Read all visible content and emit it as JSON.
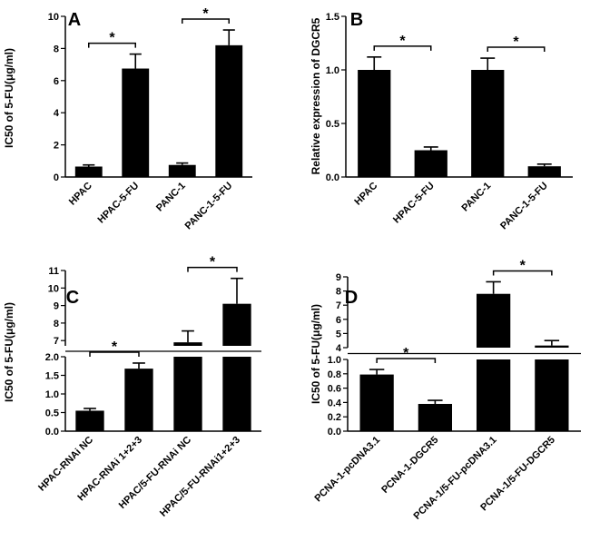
{
  "chart_data": [
    {
      "panel_label": "A",
      "type": "bar",
      "ylabel": "IC50 of 5-FU(μg/ml)",
      "categories": [
        "HPAC",
        "HPAC-5-FU",
        "PANC-1",
        "PANC-1-5-FU"
      ],
      "values": [
        0.65,
        6.75,
        0.75,
        8.2
      ],
      "errors": [
        0.1,
        0.9,
        0.12,
        0.95
      ],
      "ylim": [
        0,
        10
      ],
      "yticks": [
        0,
        2,
        4,
        6,
        8,
        10
      ],
      "significance": [
        {
          "from": 0,
          "to": 1,
          "label": "*"
        },
        {
          "from": 2,
          "to": 3,
          "label": "*"
        }
      ]
    },
    {
      "panel_label": "B",
      "type": "bar",
      "ylabel": "Relative expression of DGCR5",
      "categories": [
        "HPAC",
        "HPAC-5-FU",
        "PANC-1",
        "PANC-1-5-FU"
      ],
      "values": [
        1.0,
        0.25,
        1.0,
        0.1
      ],
      "errors": [
        0.12,
        0.03,
        0.11,
        0.02
      ],
      "ylim": [
        0,
        1.5
      ],
      "yticks": [
        "0.0",
        "0.5",
        "1.0",
        "1.5"
      ],
      "significance": [
        {
          "from": 0,
          "to": 1,
          "label": "*"
        },
        {
          "from": 2,
          "to": 3,
          "label": "*"
        }
      ]
    },
    {
      "panel_label": "C",
      "type": "bar",
      "broken_axis": true,
      "ylabel": "IC50 of 5-FU(μg/ml)",
      "categories": [
        "HPAC-RNAi NC",
        "HPAC-RNAi 1+2+3",
        "HPAC/5-FU-RNAi NC",
        "HPAC/5-FU-RNAi1+2+3"
      ],
      "values": [
        0.55,
        1.68,
        6.9,
        9.1
      ],
      "errors": [
        0.06,
        0.15,
        0.65,
        1.45
      ],
      "lower_range": [
        0,
        2
      ],
      "lower_ticks": [
        "0.0",
        "0.5",
        "1.0",
        "1.5",
        "2.0"
      ],
      "upper_range": [
        6.7,
        11
      ],
      "upper_ticks": [
        "7",
        "8",
        "9",
        "10",
        "11"
      ],
      "significance": [
        {
          "from": 0,
          "to": 1,
          "label": "*"
        },
        {
          "from": 2,
          "to": 3,
          "label": "*"
        }
      ]
    },
    {
      "panel_label": "D",
      "type": "bar",
      "broken_axis": true,
      "ylabel": "IC50 of 5-FU(μg/ml)",
      "categories": [
        "PCNA-1-pcDNA3.1",
        "PCNA-1-DGCR5",
        "PCNA-1/5-FU-pcDNA3.1",
        "PCNA-1/5-FU-DGCR5"
      ],
      "values": [
        0.79,
        0.38,
        7.8,
        4.15
      ],
      "errors": [
        0.07,
        0.05,
        0.85,
        0.35
      ],
      "lower_range": [
        0,
        1
      ],
      "lower_ticks": [
        "0.0",
        "0.2",
        "0.4",
        "0.6",
        "0.8",
        "1.0"
      ],
      "upper_range": [
        4,
        9
      ],
      "upper_ticks": [
        "4",
        "5",
        "6",
        "7",
        "8",
        "9"
      ],
      "significance": [
        {
          "from": 0,
          "to": 1,
          "label": "*"
        },
        {
          "from": 2,
          "to": 3,
          "label": "*"
        }
      ]
    }
  ]
}
